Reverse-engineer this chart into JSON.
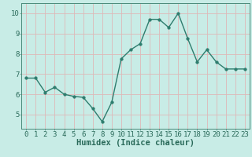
{
  "x": [
    0,
    1,
    2,
    3,
    4,
    5,
    6,
    7,
    8,
    9,
    10,
    11,
    12,
    13,
    14,
    15,
    16,
    17,
    18,
    19,
    20,
    21,
    22,
    23
  ],
  "y": [
    6.8,
    6.8,
    6.1,
    6.35,
    6.0,
    5.9,
    5.85,
    5.3,
    4.65,
    5.6,
    7.75,
    8.2,
    8.5,
    9.7,
    9.7,
    9.3,
    10.0,
    8.75,
    7.6,
    8.2,
    7.6,
    7.25,
    7.25,
    7.25
  ],
  "xlabel": "Humidex (Indice chaleur)",
  "ylim": [
    4.3,
    10.5
  ],
  "xlim": [
    -0.5,
    23.5
  ],
  "yticks": [
    5,
    6,
    7,
    8,
    9,
    10
  ],
  "xticks": [
    0,
    1,
    2,
    3,
    4,
    5,
    6,
    7,
    8,
    9,
    10,
    11,
    12,
    13,
    14,
    15,
    16,
    17,
    18,
    19,
    20,
    21,
    22,
    23
  ],
  "line_color": "#2e7d6e",
  "marker_color": "#2e7d6e",
  "bg_color": "#c8ece6",
  "grid_color": "#deb8b8",
  "spine_color": "#4a8a7a",
  "tick_label_color": "#2a6a5a",
  "xlabel_color": "#2a6a5a",
  "xlabel_fontsize": 7.5,
  "tick_fontsize": 6.5,
  "line_width": 1.0,
  "marker_size": 2.5
}
